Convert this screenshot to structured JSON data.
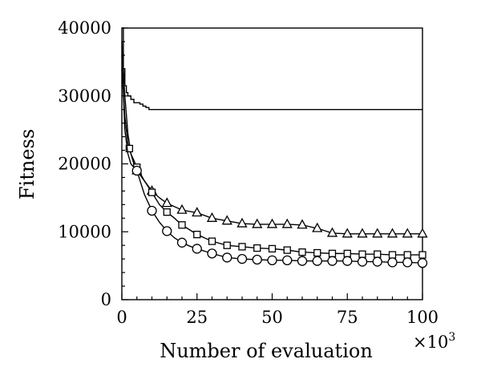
{
  "chart_data": {
    "type": "line",
    "title": "",
    "xlabel": "Number of evaluation",
    "x_multiplier_label": "×10",
    "x_multiplier_exp": "3",
    "ylabel": "Fitness",
    "xlim": [
      0,
      100
    ],
    "ylim": [
      0,
      40000
    ],
    "x_ticks": [
      0,
      25,
      50,
      75,
      100
    ],
    "y_ticks": [
      0,
      10000,
      20000,
      30000,
      40000
    ],
    "x_tick_labels": [
      "0",
      "25",
      "50",
      "75",
      "100"
    ],
    "y_tick_labels": [
      "0",
      "10000",
      "20000",
      "30000",
      "40000"
    ],
    "grid": false,
    "series": [
      {
        "marker": "none",
        "step": true,
        "x": [
          0,
          0.5,
          1,
          1.5,
          2,
          3,
          4,
          5,
          6,
          7,
          8,
          9,
          100
        ],
        "y": [
          40000,
          34000,
          31500,
          30500,
          30000,
          29500,
          29000,
          29000,
          28800,
          28500,
          28300,
          28000,
          28000
        ]
      },
      {
        "marker": "triangle",
        "x": [
          0,
          1,
          2,
          3,
          4,
          5,
          7.5,
          10,
          12.5,
          15,
          20,
          25,
          30,
          35,
          40,
          45,
          50,
          55,
          60,
          65,
          70,
          75,
          80,
          85,
          90,
          95,
          100
        ],
        "y": [
          38000,
          30000,
          24500,
          21500,
          20000,
          19000,
          17500,
          16000,
          15000,
          14200,
          13200,
          12800,
          12000,
          11600,
          11200,
          11100,
          11100,
          11100,
          11000,
          10500,
          9800,
          9700,
          9700,
          9700,
          9700,
          9700,
          9700
        ],
        "markers_x": [
          5,
          10,
          15,
          20,
          25,
          30,
          35,
          40,
          45,
          50,
          55,
          60,
          65,
          70,
          75,
          80,
          85,
          90,
          95,
          100
        ]
      },
      {
        "marker": "square",
        "x": [
          0,
          1,
          2,
          3,
          4,
          5,
          7.5,
          10,
          12.5,
          15,
          17.5,
          20,
          25,
          30,
          35,
          40,
          45,
          50,
          55,
          60,
          65,
          70,
          75,
          80,
          85,
          90,
          95,
          100
        ],
        "y": [
          34000,
          27000,
          23000,
          21500,
          20500,
          19500,
          17500,
          15800,
          14000,
          12900,
          12000,
          11000,
          9600,
          8600,
          8000,
          7800,
          7600,
          7500,
          7300,
          7000,
          6900,
          6800,
          6800,
          6700,
          6700,
          6600,
          6600,
          6600
        ],
        "markers_x": [
          2.5,
          5,
          10,
          15,
          20,
          25,
          30,
          35,
          40,
          45,
          50,
          55,
          60,
          65,
          70,
          75,
          80,
          85,
          90,
          95,
          100
        ]
      },
      {
        "marker": "circle",
        "x": [
          0,
          1,
          2,
          3,
          4,
          5,
          7.5,
          10,
          12.5,
          15,
          17.5,
          20,
          22.5,
          25,
          30,
          35,
          40,
          45,
          50,
          55,
          60,
          65,
          70,
          75,
          80,
          85,
          90,
          95,
          100
        ],
        "y": [
          36000,
          25000,
          21500,
          20000,
          19500,
          19000,
          15500,
          13100,
          11400,
          10100,
          9100,
          8400,
          7900,
          7500,
          6800,
          6200,
          6000,
          5900,
          5800,
          5800,
          5700,
          5700,
          5700,
          5700,
          5600,
          5600,
          5500,
          5500,
          5400
        ],
        "markers_x": [
          5,
          10,
          15,
          20,
          25,
          30,
          35,
          40,
          45,
          50,
          55,
          60,
          65,
          70,
          75,
          80,
          85,
          90,
          95,
          100
        ]
      }
    ]
  }
}
